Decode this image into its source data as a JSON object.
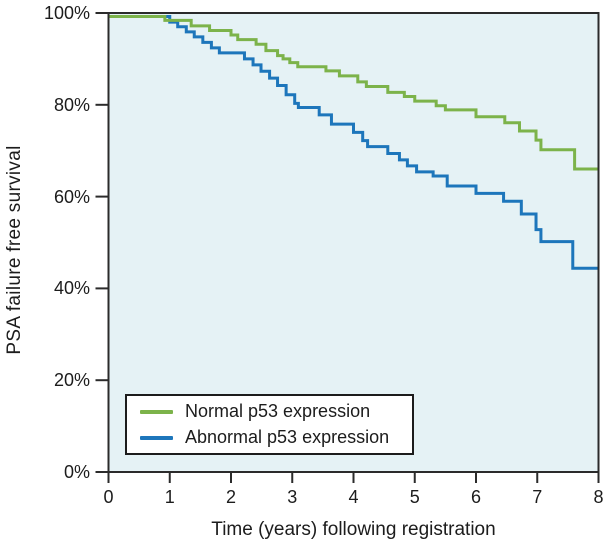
{
  "figure": {
    "background": "#ffffff",
    "text_color": "#1c1c1c"
  },
  "chart_data": {
    "type": "line",
    "subtype": "kaplan-meier-step-survival",
    "title": "",
    "xlabel": "Time (years) following registration",
    "ylabel": "PSA failure free survival",
    "xlim": [
      0,
      8
    ],
    "ylim": [
      0,
      100
    ],
    "grid": false,
    "legend_position": "lower-left",
    "plot_bg_color": "#e5f2f5",
    "axis_color": "#2b2b2b",
    "x_ticks": [
      0,
      1,
      2,
      3,
      4,
      5,
      6,
      7,
      8
    ],
    "y_ticks": [
      {
        "value": 100,
        "label": "100%"
      },
      {
        "value": 80,
        "label": "80%"
      },
      {
        "value": 60,
        "label": "60%"
      },
      {
        "value": 40,
        "label": "40%"
      },
      {
        "value": 20,
        "label": "20%"
      },
      {
        "value": 0,
        "label": "0%"
      }
    ],
    "series": [
      {
        "id": "normal-p53",
        "name": "Normal p53 expression",
        "color": "#7cb34a",
        "points": [
          [
            0,
            100
          ],
          [
            0.92,
            98.4
          ],
          [
            1.35,
            97.2
          ],
          [
            1.65,
            96.2
          ],
          [
            2.0,
            95.2
          ],
          [
            2.11,
            94.2
          ],
          [
            2.41,
            93.2
          ],
          [
            2.57,
            91.8
          ],
          [
            2.76,
            90.7
          ],
          [
            2.85,
            90.0
          ],
          [
            2.96,
            89.2
          ],
          [
            3.09,
            88.3
          ],
          [
            3.55,
            87.4
          ],
          [
            3.77,
            86.3
          ],
          [
            4.07,
            85.0
          ],
          [
            4.21,
            84.0
          ],
          [
            4.56,
            82.7
          ],
          [
            4.83,
            81.8
          ],
          [
            5.0,
            80.8
          ],
          [
            5.35,
            79.8
          ],
          [
            5.5,
            78.9
          ],
          [
            6.0,
            77.4
          ],
          [
            6.47,
            76.1
          ],
          [
            6.71,
            74.3
          ],
          [
            6.98,
            72.3
          ],
          [
            7.06,
            70.2
          ],
          [
            7.61,
            66.0
          ],
          [
            8,
            66.0
          ]
        ]
      },
      {
        "id": "abnormal-p53",
        "name": "Abnormal p53 expression",
        "color": "#1d76bb",
        "points": [
          [
            0,
            100
          ],
          [
            1.0,
            98.0
          ],
          [
            1.13,
            97.0
          ],
          [
            1.27,
            95.9
          ],
          [
            1.4,
            94.8
          ],
          [
            1.54,
            93.6
          ],
          [
            1.68,
            92.4
          ],
          [
            1.81,
            91.3
          ],
          [
            2.22,
            90.0
          ],
          [
            2.36,
            88.7
          ],
          [
            2.49,
            87.3
          ],
          [
            2.63,
            85.8
          ],
          [
            2.76,
            84.2
          ],
          [
            2.9,
            82.2
          ],
          [
            3.04,
            80.3
          ],
          [
            3.1,
            79.4
          ],
          [
            3.44,
            77.8
          ],
          [
            3.64,
            75.8
          ],
          [
            4.0,
            74.0
          ],
          [
            4.15,
            72.2
          ],
          [
            4.23,
            70.9
          ],
          [
            4.56,
            69.4
          ],
          [
            4.75,
            68.0
          ],
          [
            4.88,
            66.7
          ],
          [
            5.03,
            65.4
          ],
          [
            5.3,
            64.5
          ],
          [
            5.53,
            62.3
          ],
          [
            6.0,
            60.7
          ],
          [
            6.45,
            59.0
          ],
          [
            6.74,
            56.2
          ],
          [
            6.98,
            52.8
          ],
          [
            7.06,
            50.2
          ],
          [
            7.58,
            44.4
          ],
          [
            8,
            44.4
          ]
        ]
      }
    ]
  }
}
